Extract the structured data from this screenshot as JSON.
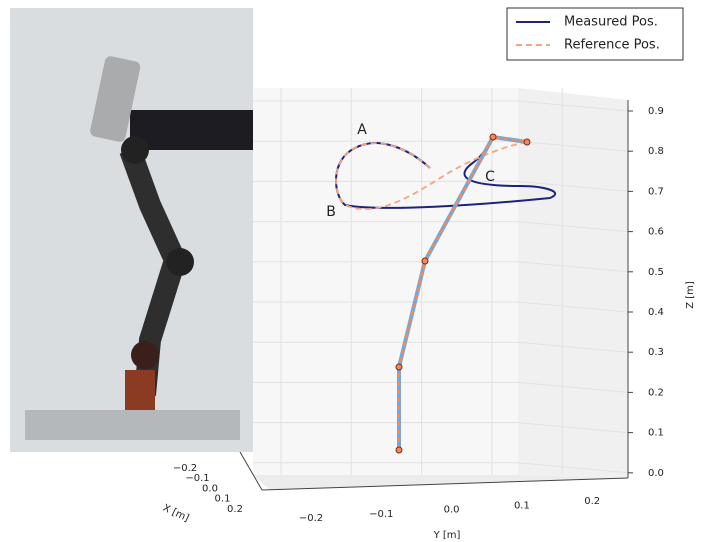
{
  "figure": {
    "legend": [
      "Measured Pos.",
      "Reference Pos."
    ],
    "annotations": [
      "A",
      "B",
      "C"
    ],
    "z_axis": {
      "label": "Z [m]",
      "ticks": [
        "0.9",
        "0.8",
        "0.7",
        "0.6",
        "0.5",
        "0.4",
        "0.3",
        "0.2",
        "0.1",
        "0.0"
      ]
    },
    "y_axis": {
      "label": "Y [m]",
      "ticks": [
        "−0.2",
        "−0.1",
        "0.0",
        "0.1",
        "0.2"
      ]
    },
    "x_axis": {
      "label": "X [m]",
      "ticks": [
        "−0.2",
        "−0.1",
        "0.0",
        "0.1",
        "0.2"
      ]
    }
  }
}
